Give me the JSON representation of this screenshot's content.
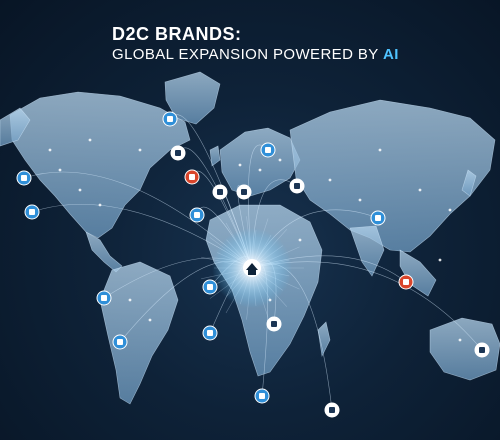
{
  "title": {
    "line1": "D2C BRANDS:",
    "line2_prefix": "GLOBAL EXPANSION POWERED BY ",
    "line2_accent": "AI"
  },
  "colors": {
    "background": "#0e2238",
    "land": "#8fb8d8",
    "glow": "#ffffff",
    "accent": "#4fc3ff",
    "connection_lines": "#d8ecff",
    "red_marker": "#d9452b",
    "blue_marker": "#2f8fd8"
  },
  "hub": {
    "icon": "home-icon"
  },
  "markers": [
    {
      "icon": "tablet-icon",
      "color": "#2f8fd8"
    },
    {
      "icon": "triangle-alert-icon",
      "color": "#ffffff"
    },
    {
      "icon": "chat-icon",
      "color": "#2f8fd8"
    },
    {
      "icon": "storefront-icon",
      "color": "#ffffff"
    },
    {
      "icon": "watch-icon",
      "color": "#d9452b"
    },
    {
      "icon": "warning-icon",
      "color": "#ffffff"
    },
    {
      "icon": "chart-icon",
      "color": "#2f8fd8"
    },
    {
      "icon": "bag-icon",
      "color": "#2f8fd8"
    },
    {
      "icon": "globe-icon",
      "color": "#ffffff"
    },
    {
      "icon": "ai-chip-icon",
      "color": "#2f8fd8"
    },
    {
      "icon": "phone-icon",
      "color": "#2f8fd8"
    },
    {
      "icon": "cart-icon",
      "color": "#2f8fd8"
    },
    {
      "icon": "laptop-icon",
      "color": "#d9452b"
    },
    {
      "icon": "box-icon",
      "color": "#2f8fd8"
    },
    {
      "icon": "factory-icon",
      "color": "#2f8fd8"
    },
    {
      "icon": "sneaker-icon",
      "color": "#ffffff"
    },
    {
      "icon": "card-icon",
      "color": "#2f8fd8"
    },
    {
      "icon": "store-icon",
      "color": "#2f8fd8"
    },
    {
      "icon": "headphones-icon",
      "color": "#ffffff"
    },
    {
      "icon": "home-icon",
      "color": "#ffffff"
    }
  ]
}
